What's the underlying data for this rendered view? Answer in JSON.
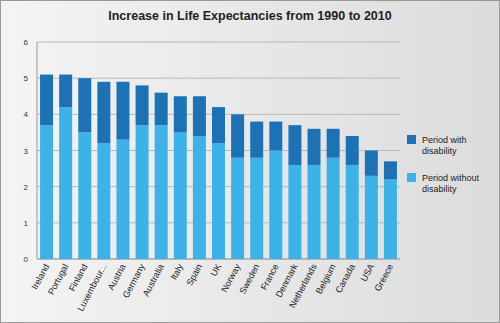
{
  "chart_data": {
    "type": "bar",
    "stacked": true,
    "grid": true,
    "legend": "right",
    "title": "Increase in Life Expectancies from 1990 to 2010",
    "categories": [
      "Ireland",
      "Portugal",
      "Finland",
      "Luxembour...",
      "Austria",
      "Germany",
      "Australia",
      "Italy",
      "Spain",
      "UK",
      "Norway",
      "Sweden",
      "France",
      "Denmark",
      "Netherlands",
      "Belgium",
      "Canada",
      "USA",
      "Greece"
    ],
    "series": [
      {
        "name": "Period without disability",
        "color": "#3cb3e8",
        "values": [
          3.7,
          4.2,
          3.5,
          3.2,
          3.3,
          3.7,
          3.7,
          3.5,
          3.4,
          3.2,
          2.8,
          2.8,
          3.0,
          2.6,
          2.6,
          2.8,
          2.6,
          2.3,
          2.2
        ]
      },
      {
        "name": "Period with disability",
        "color": "#1c72b5",
        "values": [
          1.4,
          0.9,
          1.5,
          1.7,
          1.6,
          1.1,
          0.9,
          1.0,
          1.1,
          1.0,
          1.2,
          1.0,
          0.8,
          1.1,
          1.0,
          0.8,
          0.8,
          0.7,
          0.5
        ]
      }
    ],
    "ylim": [
      0,
      6
    ],
    "yticks": [
      0,
      1,
      2,
      3,
      4,
      5,
      6
    ]
  }
}
